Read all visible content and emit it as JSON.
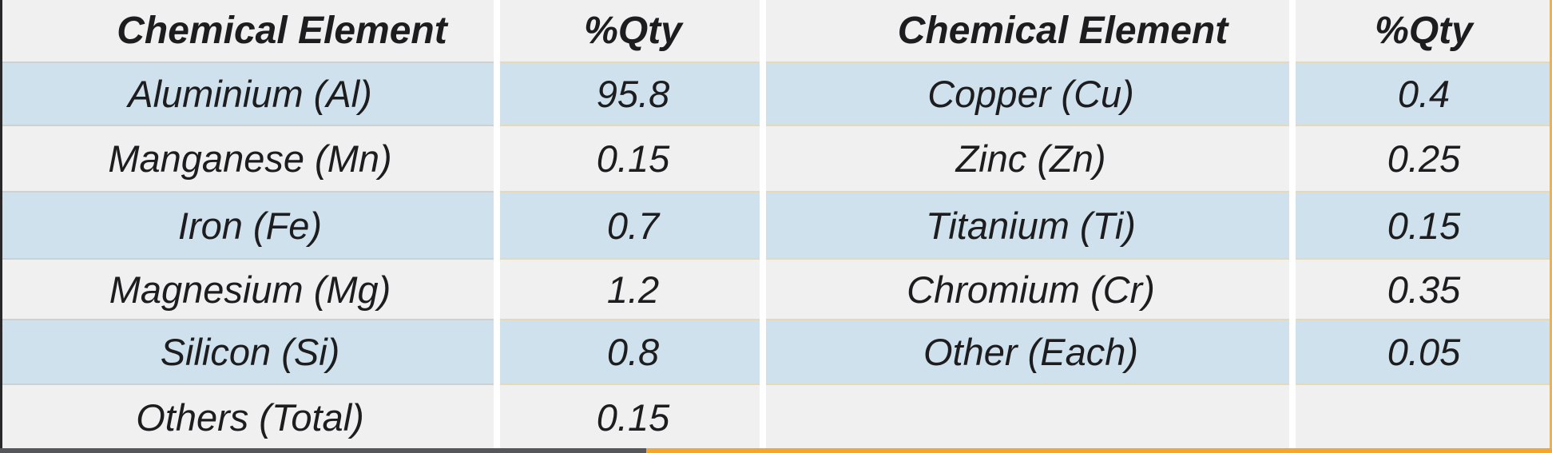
{
  "tables": {
    "left": {
      "header": {
        "element": "Chemical Element",
        "qty": "%Qty"
      },
      "rows": [
        {
          "element": "Aluminium (Al)",
          "qty": "95.8"
        },
        {
          "element": "Manganese (Mn)",
          "qty": "0.15"
        },
        {
          "element": "Iron (Fe)",
          "qty": "0.7"
        },
        {
          "element": "Magnesium (Mg)",
          "qty": "1.2"
        },
        {
          "element": "Silicon (Si)",
          "qty": "0.8"
        },
        {
          "element": "Others (Total)",
          "qty": "0.15"
        }
      ]
    },
    "right": {
      "header": {
        "element": "Chemical Element",
        "qty": "%Qty"
      },
      "rows": [
        {
          "element": "Copper (Cu)",
          "qty": "0.4"
        },
        {
          "element": "Zinc (Zn)",
          "qty": "0.25"
        },
        {
          "element": "Titanium (Ti)",
          "qty": "0.15"
        },
        {
          "element": "Chromium (Cr)",
          "qty": "0.35"
        },
        {
          "element": "Other (Each)",
          "qty": "0.05"
        },
        {
          "element": "",
          "qty": ""
        }
      ]
    }
  },
  "colors": {
    "row_blue": "#cfe1ec",
    "row_gray": "#f0f0f1",
    "divider_tan": "#e4d9bb",
    "divider_gray": "#ccd1d6",
    "separator_white": "#ffffff",
    "border_left_dark": "#28282a",
    "border_right_orange": "#e7b25e",
    "bottom_dark": "#55575b",
    "bottom_orange": "#f4a72f",
    "text": "#1d1d1f"
  }
}
